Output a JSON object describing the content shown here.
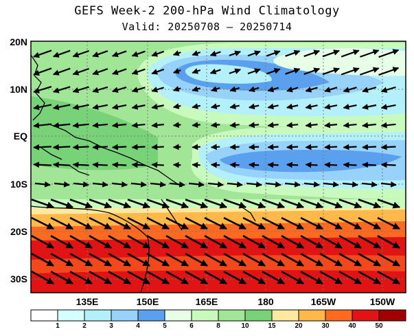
{
  "title": "GEFS Week-2 200-hPa Wind Climatology",
  "subtitle": "Valid: 20250708 – 20250714",
  "map": {
    "lat_labels": [
      "20N",
      "10N",
      "EQ",
      "10S",
      "20S",
      "30S"
    ],
    "lon_labels": [
      "135E",
      "150E",
      "165E",
      "180",
      "165W",
      "150W"
    ],
    "colors": {
      "land_outline": "#000000",
      "grid": "#777777"
    }
  },
  "colorbar": {
    "levels": [
      "1",
      "2",
      "3",
      "4",
      "5",
      "6",
      "8",
      "10",
      "15",
      "20",
      "30",
      "40",
      "50"
    ],
    "colors": [
      "#ffffff",
      "#d6ffff",
      "#b4f0fa",
      "#96d2fa",
      "#5aa0ee",
      "#e6ffe6",
      "#c8fabe",
      "#a0e696",
      "#78d278",
      "#ffe8a0",
      "#ffb84a",
      "#ff6a20",
      "#e01414",
      "#a00000"
    ]
  }
}
